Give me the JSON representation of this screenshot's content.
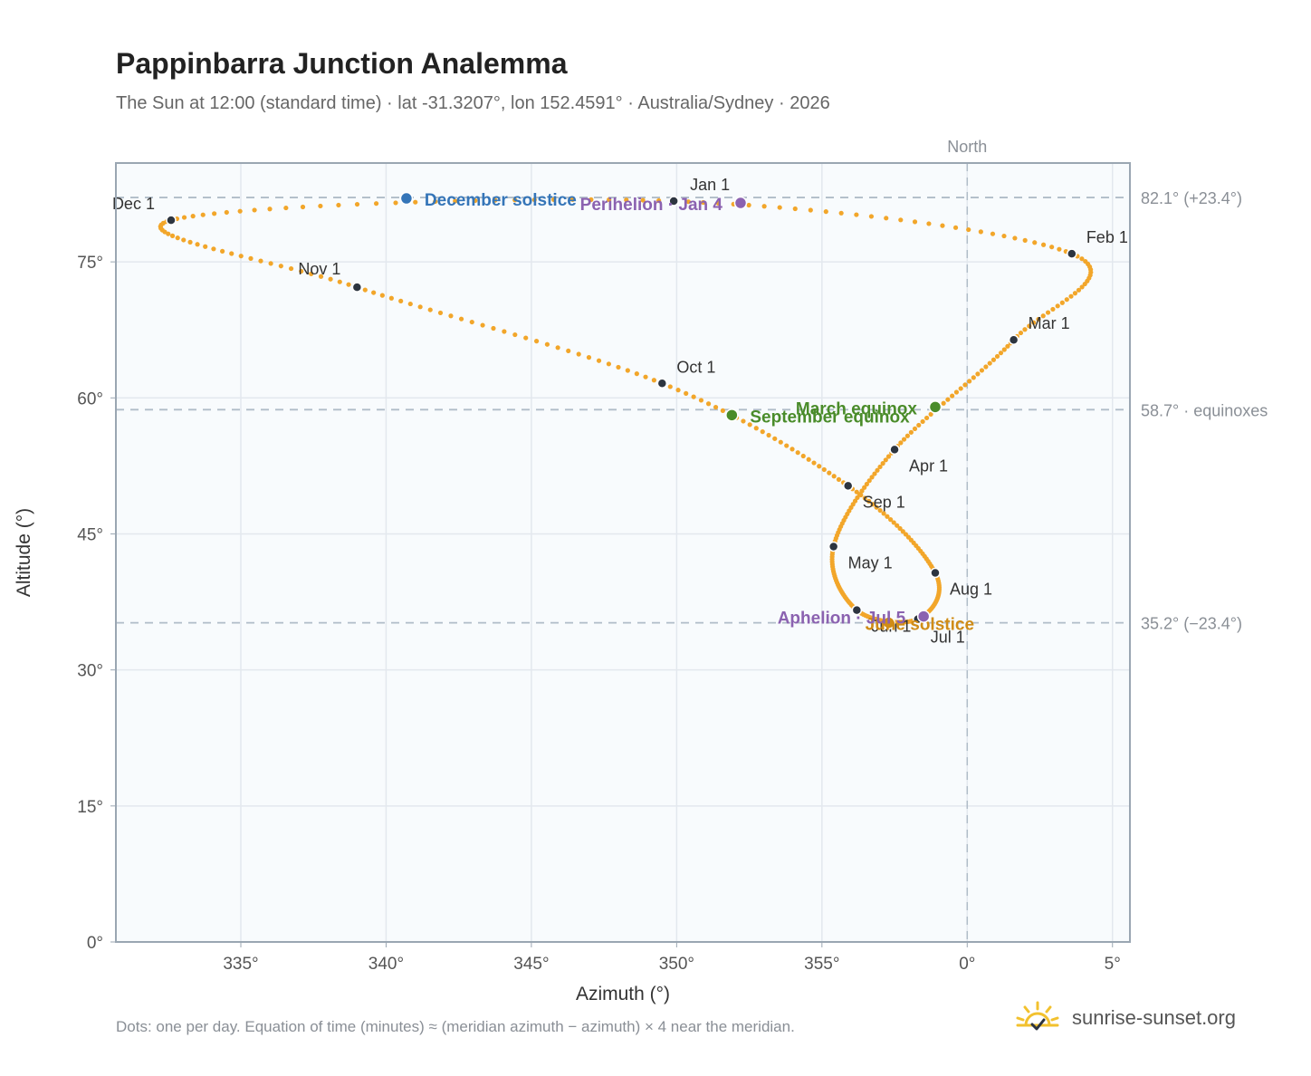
{
  "header": {
    "title": "Pappinbarra Junction Analemma",
    "subtitle": "The Sun at 12:00 (standard time) · lat -31.3207°, lon 152.4591° · Australia/Sydney · 2026"
  },
  "footer": {
    "note": "Dots: one per day. Equation of time (minutes) ≈ (meridian azimuth − azimuth) × 4 near the meridian.",
    "brand": "sunrise-sunset.org"
  },
  "colors": {
    "dots": "#f2a62a",
    "month_marker": "#2d3540",
    "december_solstice": "#3575b8",
    "june_solstice": "#d08c16",
    "equinox": "#4a8c2a",
    "perihelion_aphelion": "#8b62b0",
    "plot_bg": "#f8fbfd",
    "grid": "#e3e8ee",
    "frame": "#9aa6b2",
    "reference_line": "#b0bcc8"
  },
  "chart_data": {
    "type": "scatter",
    "xlabel": "Azimuth (°)",
    "ylabel": "Altitude (°)",
    "xlim": [
      330.7,
      5.6
    ],
    "ylim": [
      0,
      85.9
    ],
    "x_ticks": [
      "335°",
      "340°",
      "345°",
      "350°",
      "355°",
      "0°",
      "5°"
    ],
    "x_tick_values": [
      335,
      340,
      345,
      350,
      355,
      360,
      365
    ],
    "y_ticks": [
      "0°",
      "15°",
      "30°",
      "45°",
      "60°",
      "75°"
    ],
    "y_tick_values": [
      0,
      15,
      30,
      45,
      60,
      75
    ],
    "grid": true,
    "north_line": {
      "azimuth": 360,
      "label": "North"
    },
    "reference_lines": [
      {
        "altitude": 82.1,
        "label": "82.1° (+23.4°)"
      },
      {
        "altitude": 58.7,
        "label": "58.7° · equinoxes"
      },
      {
        "altitude": 35.2,
        "label": "35.2° (−23.4°)"
      }
    ],
    "month_markers": [
      {
        "label": "Jan 1",
        "azimuth": 349.9,
        "altitude": 81.7
      },
      {
        "label": "Feb 1",
        "azimuth": 363.6,
        "altitude": 75.9
      },
      {
        "label": "Mar 1",
        "azimuth": 361.6,
        "altitude": 66.4
      },
      {
        "label": "Apr 1",
        "azimuth": 357.5,
        "altitude": 54.3
      },
      {
        "label": "May 1",
        "azimuth": 355.4,
        "altitude": 43.6
      },
      {
        "label": "Jun 1",
        "azimuth": 356.2,
        "altitude": 36.6
      },
      {
        "label": "Jul 1",
        "azimuth": 358.3,
        "altitude": 35.6
      },
      {
        "label": "Aug 1",
        "azimuth": 358.9,
        "altitude": 40.7
      },
      {
        "label": "Sep 1",
        "azimuth": 355.9,
        "altitude": 50.3
      },
      {
        "label": "Oct 1",
        "azimuth": 349.5,
        "altitude": 61.6
      },
      {
        "label": "Nov 1",
        "azimuth": 339.0,
        "altitude": 72.2
      },
      {
        "label": "Dec 1",
        "azimuth": 332.6,
        "altitude": 79.6
      }
    ],
    "events": [
      {
        "label": "December solstice",
        "azimuth": 340.7,
        "altitude": 82.0,
        "color_key": "december_solstice"
      },
      {
        "label": "Perihelion · Jan 4",
        "azimuth": 352.2,
        "altitude": 81.5,
        "color_key": "perihelion_aphelion"
      },
      {
        "label": "March equinox",
        "azimuth": 358.9,
        "altitude": 59.0,
        "color_key": "equinox"
      },
      {
        "label": "September equinox",
        "azimuth": 351.9,
        "altitude": 58.1,
        "color_key": "equinox"
      },
      {
        "label": "June solstice",
        "azimuth": 357.3,
        "altitude": 35.2,
        "color_key": "june_solstice"
      },
      {
        "label": "Aphelion · Jul 5",
        "azimuth": 358.5,
        "altitude": 35.9,
        "color_key": "perihelion_aphelion"
      }
    ]
  }
}
